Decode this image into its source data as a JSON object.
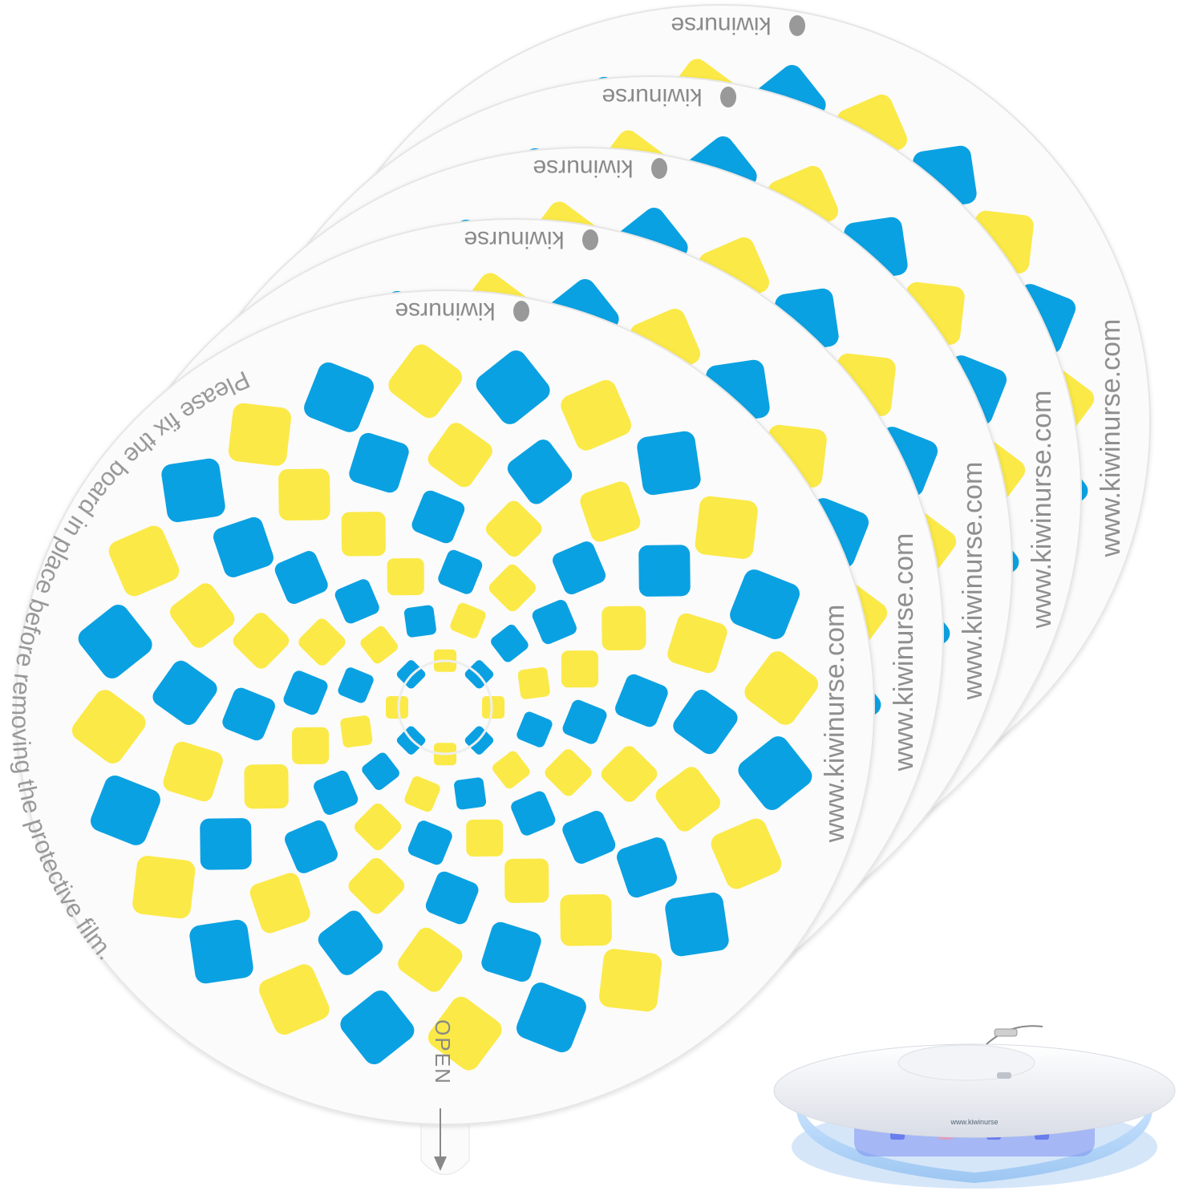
{
  "product": {
    "brand_label": "kiwinurse",
    "website_label": "www.kiwinurse.com",
    "instruction_text": "Please fix the board in place before removing the protective film.",
    "open_tab_label": "OPEN",
    "disc_count": 5
  },
  "device": {
    "label": "www.kiwinurse"
  },
  "colors": {
    "blue": "#0aa1e2",
    "yellow": "#fbe947",
    "disc": "#fbfbfb",
    "disc_edge": "#e6e6e6",
    "text": "#8f8f8f"
  },
  "icons": [
    "kiwi-logo-icon",
    "arrow-down-icon"
  ]
}
